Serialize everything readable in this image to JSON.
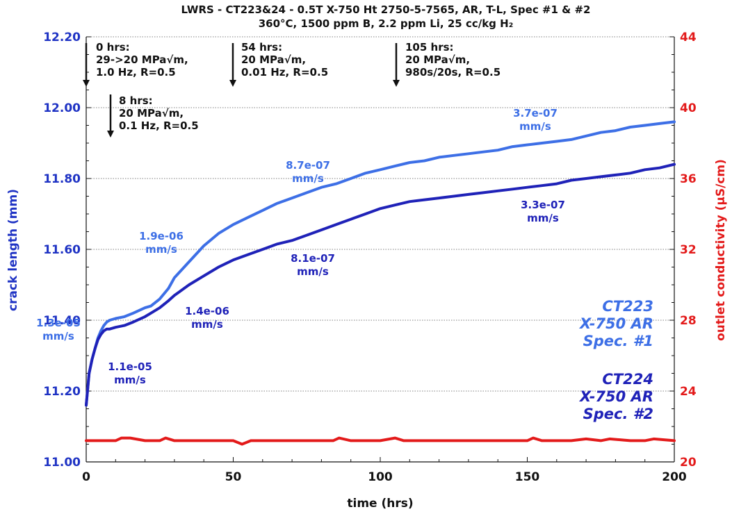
{
  "chart_data": {
    "type": "line",
    "title": "LWRS - CT223&24 - 0.5T X-750 Ht 2750-5-7565, AR, T-L, Spec #1 & #2",
    "subtitle": "360°C, 1500 ppm B, 2.2 ppm Li, 25 cc/kg H₂",
    "xlabel": "time (hrs)",
    "ylabel": "crack length (mm)",
    "y2label": "outlet conductivity (μS/cm)",
    "xlim": [
      0,
      200
    ],
    "ylim": [
      11.0,
      12.2
    ],
    "y2lim": [
      20,
      44
    ],
    "xticks": [
      "0",
      "50",
      "100",
      "150",
      "200"
    ],
    "yticks": [
      "11.00",
      "11.20",
      "11.40",
      "11.60",
      "11.80",
      "12.00",
      "12.20"
    ],
    "y2ticks": [
      "20",
      "24",
      "28",
      "32",
      "36",
      "40",
      "44"
    ],
    "grid": "horizontal dotted",
    "colors": {
      "spec1": "#3d6fe6",
      "spec2": "#1f22b8",
      "conductivity": "#e31a1a",
      "left_axis": "#1f33c4",
      "right_axis": "#e31a1a"
    },
    "series": [
      {
        "name": "CT223 X-750 AR Spec. #1",
        "axis": "left",
        "color": "#3d6fe6",
        "x": [
          0,
          1,
          2,
          3,
          4,
          5,
          6,
          7,
          8,
          10,
          13,
          16,
          20,
          22,
          25,
          28,
          30,
          35,
          40,
          45,
          50,
          55,
          60,
          65,
          70,
          75,
          80,
          85,
          90,
          95,
          100,
          105,
          110,
          115,
          120,
          125,
          130,
          135,
          140,
          145,
          150,
          155,
          160,
          165,
          170,
          175,
          180,
          185,
          190,
          195,
          200
        ],
        "y": [
          11.16,
          11.25,
          11.29,
          11.32,
          11.35,
          11.37,
          11.385,
          11.395,
          11.4,
          11.405,
          11.41,
          11.42,
          11.435,
          11.44,
          11.46,
          11.49,
          11.52,
          11.565,
          11.61,
          11.645,
          11.67,
          11.69,
          11.71,
          11.73,
          11.745,
          11.76,
          11.775,
          11.785,
          11.8,
          11.815,
          11.825,
          11.835,
          11.845,
          11.85,
          11.86,
          11.865,
          11.87,
          11.875,
          11.88,
          11.89,
          11.895,
          11.9,
          11.905,
          11.91,
          11.92,
          11.93,
          11.935,
          11.945,
          11.95,
          11.955,
          11.96
        ]
      },
      {
        "name": "CT224 X-750 AR Spec. #2",
        "axis": "left",
        "color": "#1f22b8",
        "x": [
          0,
          1,
          2,
          3,
          4,
          5,
          6,
          7,
          8,
          10,
          13,
          16,
          20,
          22,
          25,
          28,
          30,
          35,
          40,
          45,
          50,
          55,
          60,
          65,
          70,
          75,
          80,
          85,
          90,
          95,
          100,
          105,
          110,
          115,
          120,
          125,
          130,
          135,
          140,
          145,
          150,
          155,
          160,
          165,
          170,
          175,
          180,
          185,
          190,
          195,
          200
        ],
        "y": [
          11.16,
          11.25,
          11.29,
          11.32,
          11.345,
          11.36,
          11.37,
          11.375,
          11.375,
          11.38,
          11.385,
          11.395,
          11.41,
          11.42,
          11.435,
          11.455,
          11.47,
          11.5,
          11.525,
          11.55,
          11.57,
          11.585,
          11.6,
          11.615,
          11.625,
          11.64,
          11.655,
          11.67,
          11.685,
          11.7,
          11.715,
          11.725,
          11.735,
          11.74,
          11.745,
          11.75,
          11.755,
          11.76,
          11.765,
          11.77,
          11.775,
          11.78,
          11.785,
          11.795,
          11.8,
          11.805,
          11.81,
          11.815,
          11.825,
          11.83,
          11.84
        ]
      },
      {
        "name": "outlet conductivity",
        "axis": "right",
        "color": "#e31a1a",
        "x": [
          0,
          10,
          12,
          15,
          20,
          25,
          27,
          30,
          40,
          50,
          53,
          56,
          60,
          70,
          84,
          86,
          90,
          100,
          105,
          108,
          120,
          130,
          140,
          150,
          152,
          155,
          165,
          170,
          175,
          178,
          185,
          190,
          193,
          200
        ],
        "y": [
          21.2,
          21.2,
          21.35,
          21.35,
          21.2,
          21.2,
          21.35,
          21.2,
          21.2,
          21.2,
          21.0,
          21.2,
          21.2,
          21.2,
          21.2,
          21.35,
          21.2,
          21.2,
          21.35,
          21.2,
          21.2,
          21.2,
          21.2,
          21.2,
          21.35,
          21.2,
          21.2,
          21.3,
          21.2,
          21.3,
          21.2,
          21.2,
          21.3,
          21.2
        ]
      }
    ],
    "annotations": [
      {
        "time": 0,
        "lines": [
          "0 hrs:",
          "29->20 MPa√m,",
          "1.0 Hz, R=0.5"
        ]
      },
      {
        "time": 8,
        "lines": [
          "8 hrs:",
          "20 MPa√m,",
          "0.1 Hz, R=0.5"
        ]
      },
      {
        "time": 54,
        "lines": [
          "54 hrs:",
          "20 MPa√m,",
          "0.01 Hz, R=0.5"
        ]
      },
      {
        "time": 105,
        "lines": [
          "105 hrs:",
          "20 MPa√m,",
          "980s/20s, R=0.5"
        ]
      }
    ],
    "rate_labels": [
      {
        "series": "spec1",
        "lines": [
          "1.3e-05",
          "mm/s"
        ]
      },
      {
        "series": "spec1",
        "lines": [
          "1.9e-06",
          "mm/s"
        ]
      },
      {
        "series": "spec1",
        "lines": [
          "8.7e-07",
          "mm/s"
        ]
      },
      {
        "series": "spec1",
        "lines": [
          "3.7e-07",
          "mm/s"
        ]
      },
      {
        "series": "spec2",
        "lines": [
          "1.1e-05",
          "mm/s"
        ]
      },
      {
        "series": "spec2",
        "lines": [
          "1.4e-06",
          "mm/s"
        ]
      },
      {
        "series": "spec2",
        "lines": [
          "8.1e-07",
          "mm/s"
        ]
      },
      {
        "series": "spec2",
        "lines": [
          "3.3e-07",
          "mm/s"
        ]
      }
    ],
    "legend_labels": [
      {
        "series": "spec1",
        "lines": [
          "CT223",
          "X-750 AR",
          "Spec. #1"
        ]
      },
      {
        "series": "spec2",
        "lines": [
          "CT224",
          "X-750 AR",
          "Spec. #2"
        ]
      }
    ]
  }
}
